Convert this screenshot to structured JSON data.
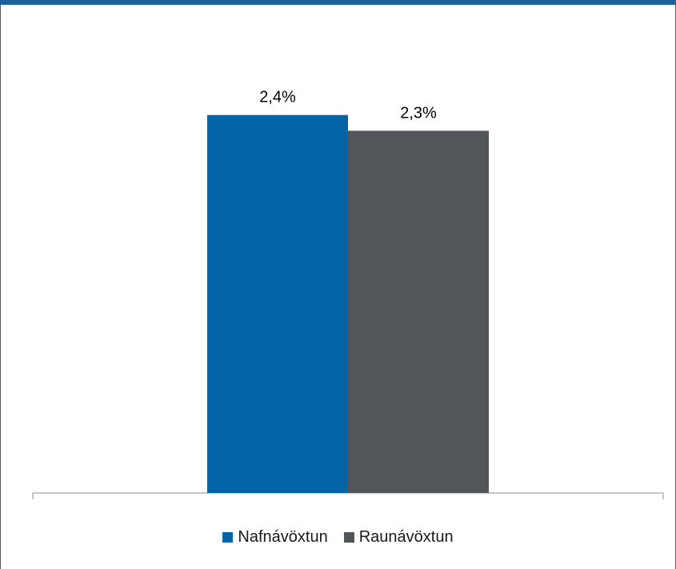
{
  "theme": {
    "top_band_color": "#1f5f9e"
  },
  "chart_data": {
    "type": "bar",
    "title": "",
    "xlabel": "",
    "ylabel": "",
    "categories": [
      ""
    ],
    "ylim": [
      0,
      2.8
    ],
    "grid": false,
    "legend_position": "bottom",
    "series": [
      {
        "name": "Nafnávöxtun",
        "values": [
          2.4
        ],
        "label": "2,4%",
        "color": "#0563a8"
      },
      {
        "name": "Raunávöxtun",
        "values": [
          2.3
        ],
        "label": "2,3%",
        "color": "#52565a"
      }
    ]
  }
}
